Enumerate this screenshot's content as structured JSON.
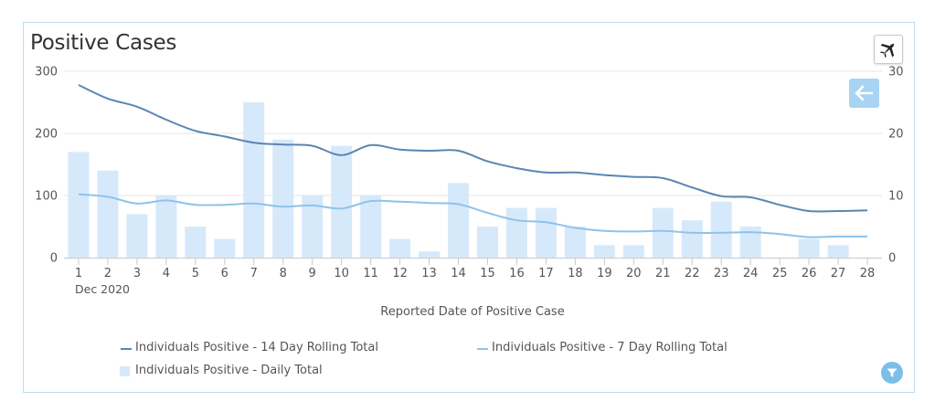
{
  "title": "Positive Cases",
  "colors": {
    "bar": "#d6e9fb",
    "line14": "#5b86b0",
    "line7": "#8ec3ea",
    "grid": "#e6e6e6",
    "axis": "#555555"
  },
  "legend": {
    "line14": "Individuals Positive - 14 Day Rolling Total",
    "line7": "Individuals Positive - 7 Day Rolling Total",
    "bars": "Individuals Positive - Daily Total"
  },
  "chart_data": {
    "type": "bar",
    "title": "Positive Cases",
    "xlabel": "Reported Date of Positive Case",
    "x_sublabel": "Dec 2020",
    "categories": [
      "1",
      "2",
      "3",
      "4",
      "5",
      "6",
      "7",
      "8",
      "9",
      "10",
      "11",
      "12",
      "13",
      "14",
      "15",
      "16",
      "17",
      "18",
      "19",
      "20",
      "21",
      "22",
      "23",
      "24",
      "25",
      "26",
      "27",
      "28"
    ],
    "y_left": {
      "min": 0,
      "max": 300,
      "ticks": [
        "0",
        "100",
        "200",
        "300"
      ]
    },
    "y_right": {
      "min": 0,
      "max": 30,
      "ticks": [
        "0",
        "10",
        "20",
        "30"
      ]
    },
    "series": [
      {
        "name": "Individuals Positive - Daily Total",
        "kind": "bar",
        "axis": "right",
        "values": [
          17,
          14,
          7,
          10,
          5,
          3,
          25,
          19,
          10,
          18,
          10,
          3,
          1,
          12,
          5,
          8,
          8,
          5,
          2,
          2,
          8,
          6,
          9,
          5,
          0,
          3,
          2,
          0
        ]
      },
      {
        "name": "Individuals Positive - 14 Day Rolling Total",
        "kind": "line",
        "axis": "left",
        "values": [
          278,
          256,
          243,
          222,
          204,
          195,
          185,
          182,
          180,
          165,
          181,
          174,
          172,
          172,
          155,
          144,
          137,
          137,
          133,
          130,
          128,
          113,
          99,
          97,
          85,
          75,
          75,
          76
        ]
      },
      {
        "name": "Individuals Positive - 7 Day Rolling Total",
        "kind": "line",
        "axis": "left",
        "values": [
          102,
          98,
          87,
          92,
          85,
          85,
          87,
          82,
          84,
          79,
          91,
          90,
          88,
          86,
          72,
          60,
          57,
          48,
          43,
          42,
          43,
          40,
          40,
          41,
          38,
          33,
          34,
          34
        ]
      }
    ]
  }
}
